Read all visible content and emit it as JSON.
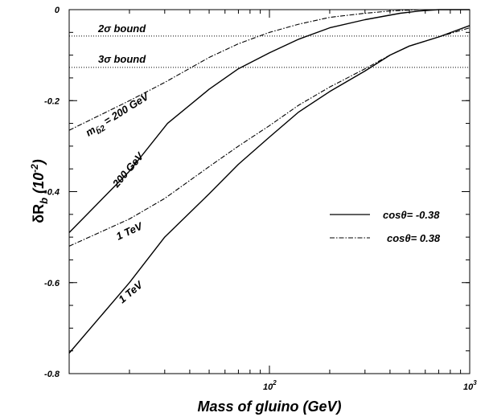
{
  "chart_data": {
    "type": "line",
    "xscale": "log",
    "xlim": [
      10,
      1000
    ],
    "ylim": [
      -0.8,
      0
    ],
    "xlabel": "Mass of gluino (GeV)",
    "ylabel_main": "δR",
    "ylabel_sub": "b",
    "ylabel_unit": " (10",
    "ylabel_exp": "-2",
    "ylabel_close": ")",
    "yticks": [
      0,
      -0.2,
      -0.4,
      -0.6,
      -0.8
    ],
    "ytick_labels": [
      "0",
      "-0.2",
      "-0.4",
      "-0.6",
      "-0.8"
    ],
    "xticks": [
      {
        "value": 100,
        "base": "10",
        "exp": "2"
      },
      {
        "value": 1000,
        "base": "10",
        "exp": "3"
      }
    ],
    "bounds": [
      {
        "y": -0.058,
        "label": "2σ bound"
      },
      {
        "y": -0.127,
        "label": "3σ bound"
      }
    ],
    "legend": [
      {
        "style": "solid",
        "label": "cosθ= -0.38"
      },
      {
        "style": "dashdot",
        "label": "cosθ= 0.38"
      }
    ],
    "series": [
      {
        "style": "solid",
        "x": [
          10,
          20,
          31,
          50,
          70,
          100,
          140,
          200,
          300,
          450,
          560,
          700,
          1000
        ],
        "y": [
          -0.49,
          -0.355,
          -0.25,
          -0.175,
          -0.13,
          -0.095,
          -0.065,
          -0.04,
          -0.022,
          -0.008,
          -0.003,
          0,
          0
        ]
      },
      {
        "style": "dashdot",
        "x": [
          10,
          20,
          30,
          50,
          70,
          100,
          140,
          200,
          300,
          400,
          560,
          700,
          1000
        ],
        "y": [
          -0.265,
          -0.2,
          -0.16,
          -0.105,
          -0.075,
          -0.05,
          -0.032,
          -0.017,
          -0.008,
          -0.003,
          0,
          0,
          0
        ]
      },
      {
        "style": "solid",
        "x": [
          10,
          20,
          30,
          50,
          70,
          100,
          140,
          200,
          300,
          400,
          500,
          700,
          1000
        ],
        "y": [
          -0.755,
          -0.6,
          -0.5,
          -0.405,
          -0.34,
          -0.28,
          -0.225,
          -0.18,
          -0.135,
          -0.1,
          -0.08,
          -0.06,
          -0.035
        ]
      },
      {
        "style": "dashdot",
        "x": [
          10,
          20,
          30,
          50,
          70,
          100,
          140,
          200,
          300,
          400,
          500,
          700,
          1000
        ],
        "y": [
          -0.52,
          -0.46,
          -0.415,
          -0.345,
          -0.3,
          -0.255,
          -0.21,
          -0.17,
          -0.13,
          -0.1,
          -0.08,
          -0.06,
          -0.04
        ]
      }
    ],
    "curve_labels": [
      {
        "text_main": "m",
        "text_sub": "b̃2",
        "text_rest": " = 200 GeV"
      },
      {
        "text_main": "200 GeV"
      },
      {
        "text_main": "1 TeV"
      },
      {
        "text_main": "1 TeV"
      }
    ]
  }
}
